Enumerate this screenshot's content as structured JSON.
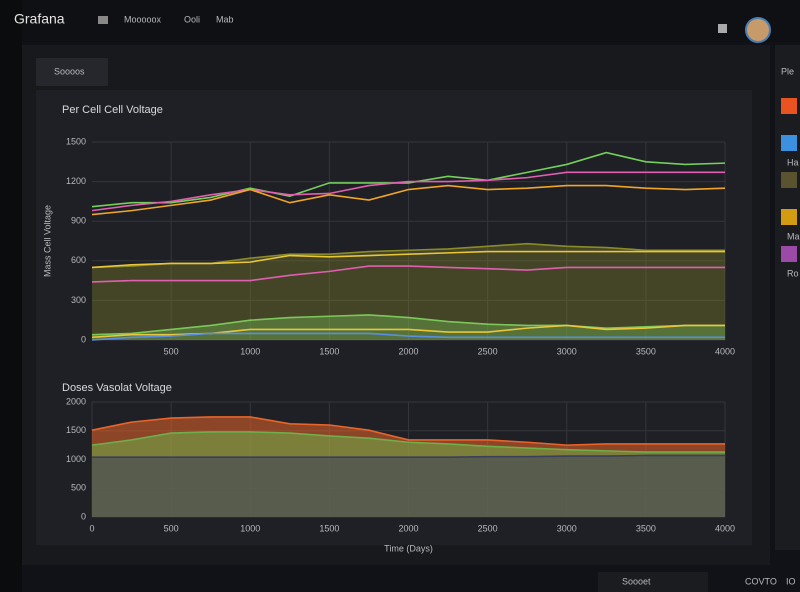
{
  "header": {
    "brand": "Grafana",
    "nav": [
      "Mooooox",
      "Ooli",
      "Mab"
    ]
  },
  "tab": "Soooos",
  "legend_panel": {
    "title": "Ple",
    "items": [
      {
        "color": "#e8531f"
      },
      {
        "color": "#3d8fe0",
        "label": "Ha"
      },
      {
        "color": "#5b5330"
      },
      {
        "color": "#d39b14",
        "label": "Ma"
      },
      {
        "color": "#9b4aa8",
        "label": "Ro"
      }
    ]
  },
  "footer": {
    "select": "Soooet",
    "status": "COVTO",
    "extra": "IO"
  },
  "chart_data": [
    {
      "type": "line",
      "title": "Per Cell Cell Voltage",
      "ylabel": "Mass Cell Voltage",
      "grid": true,
      "x": [
        0,
        250,
        500,
        750,
        1000,
        1250,
        1500,
        1750,
        2000,
        2250,
        2500,
        2750,
        3000,
        3250,
        3500,
        3750,
        4000
      ],
      "xlim": [
        0,
        4000
      ],
      "xticks": [
        500,
        1000,
        1500,
        2000,
        2500,
        3000,
        3500,
        4000
      ],
      "ylim": [
        0,
        1500
      ],
      "yticks": [
        0,
        300,
        600,
        900,
        1200,
        1500
      ],
      "series": [
        {
          "color": "#73d05a",
          "values": [
            1010,
            1040,
            1040,
            1080,
            1150,
            1090,
            1190,
            1190,
            1190,
            1240,
            1210,
            1270,
            1330,
            1420,
            1350,
            1330,
            1340
          ]
        },
        {
          "color": "#e05fb0",
          "values": [
            980,
            1020,
            1050,
            1100,
            1140,
            1100,
            1110,
            1170,
            1200,
            1200,
            1210,
            1230,
            1270,
            1270,
            1270,
            1270,
            1270
          ]
        },
        {
          "color": "#f0a526",
          "values": [
            950,
            980,
            1020,
            1060,
            1140,
            1040,
            1100,
            1060,
            1140,
            1170,
            1140,
            1150,
            1170,
            1170,
            1150,
            1140,
            1150
          ]
        },
        {
          "color": "#8a8a2a",
          "fill": true,
          "values": [
            550,
            560,
            580,
            580,
            620,
            650,
            650,
            670,
            680,
            690,
            710,
            730,
            710,
            700,
            680,
            680,
            680
          ]
        },
        {
          "color": "#e8c53a",
          "values": [
            550,
            570,
            580,
            580,
            590,
            640,
            630,
            640,
            650,
            660,
            670,
            670,
            670,
            670,
            670,
            670,
            670
          ]
        },
        {
          "color": "#e05fb0",
          "values": [
            440,
            450,
            450,
            450,
            450,
            490,
            520,
            560,
            560,
            550,
            540,
            530,
            550,
            550,
            550,
            550,
            550
          ]
        },
        {
          "color": "#7bc85a",
          "fill": true,
          "values": [
            40,
            50,
            80,
            110,
            150,
            170,
            180,
            190,
            170,
            140,
            120,
            110,
            110,
            90,
            100,
            110,
            110
          ]
        },
        {
          "color": "#e8c53a",
          "values": [
            20,
            40,
            40,
            50,
            80,
            80,
            80,
            80,
            80,
            60,
            60,
            90,
            110,
            80,
            90,
            110,
            110
          ]
        },
        {
          "color": "#5a8ee0",
          "values": [
            0,
            20,
            30,
            50,
            50,
            50,
            50,
            50,
            30,
            20,
            20,
            20,
            20,
            20,
            20,
            20,
            20
          ]
        }
      ]
    },
    {
      "type": "area",
      "title": "Doses Vasolat Voltage",
      "xlabel": "Time (Days)",
      "grid": true,
      "x": [
        0,
        250,
        500,
        750,
        1000,
        1250,
        1500,
        1750,
        2000,
        2250,
        2500,
        2750,
        3000,
        3250,
        3500,
        3750,
        4000
      ],
      "xlim": [
        0,
        4000
      ],
      "xticks": [
        0,
        500,
        1000,
        1500,
        2000,
        2500,
        3000,
        3500,
        4000
      ],
      "ylim": [
        0,
        2000
      ],
      "yticks": [
        0,
        500,
        1000,
        1500,
        2000
      ],
      "series": [
        {
          "color": "#e8652a",
          "values": [
            1510,
            1650,
            1720,
            1740,
            1740,
            1620,
            1600,
            1510,
            1340,
            1340,
            1340,
            1300,
            1250,
            1270,
            1270,
            1270,
            1270
          ]
        },
        {
          "color": "#6fae4a",
          "values": [
            1250,
            1340,
            1460,
            1480,
            1480,
            1460,
            1410,
            1370,
            1300,
            1270,
            1230,
            1200,
            1170,
            1150,
            1130,
            1130,
            1130
          ]
        },
        {
          "color": "#3a3f5c",
          "values": [
            1040,
            1040,
            1040,
            1040,
            1040,
            1040,
            1040,
            1040,
            1040,
            1040,
            1050,
            1050,
            1060,
            1060,
            1070,
            1070,
            1070
          ]
        }
      ]
    }
  ]
}
